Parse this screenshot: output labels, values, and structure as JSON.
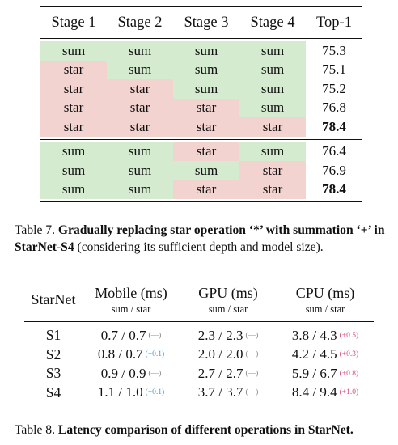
{
  "table7": {
    "headers": [
      "Stage 1",
      "Stage 2",
      "Stage 3",
      "Stage 4",
      "Top-1"
    ],
    "group1": [
      {
        "s1": "sum",
        "s2": "sum",
        "s3": "sum",
        "s4": "sum",
        "top1": "75.3"
      },
      {
        "s1": "star",
        "s2": "sum",
        "s3": "sum",
        "s4": "sum",
        "top1": "75.1"
      },
      {
        "s1": "star",
        "s2": "star",
        "s3": "sum",
        "s4": "sum",
        "top1": "75.2"
      },
      {
        "s1": "star",
        "s2": "star",
        "s3": "star",
        "s4": "sum",
        "top1": "76.8"
      },
      {
        "s1": "star",
        "s2": "star",
        "s3": "star",
        "s4": "star",
        "top1": "78.4"
      }
    ],
    "group2": [
      {
        "s1": "sum",
        "s2": "sum",
        "s3": "star",
        "s4": "sum",
        "top1": "76.4"
      },
      {
        "s1": "sum",
        "s2": "sum",
        "s3": "sum",
        "s4": "star",
        "top1": "76.9"
      },
      {
        "s1": "sum",
        "s2": "sum",
        "s3": "star",
        "s4": "star",
        "top1": "78.4"
      }
    ],
    "caption_label": "Table 7.",
    "caption_bold": "Gradually replacing star operation ‘*’ with summation ‘+’ in StarNet-S4",
    "caption_rest": "(considering its sufficient depth and model size)."
  },
  "table8": {
    "col0": "StarNet",
    "columns": [
      {
        "title": "Mobile (ms)",
        "sub": "sum / star"
      },
      {
        "title": "GPU (ms)",
        "sub": "sum / star"
      },
      {
        "title": "CPU (ms)",
        "sub": "sum / star"
      }
    ],
    "rows": [
      {
        "name": "S1",
        "mobile": "0.7 / 0.7",
        "mobile_d": "(—)",
        "gpu": "2.3 / 2.3",
        "gpu_d": "(—)",
        "cpu": "3.8 / 4.3",
        "cpu_d": "(+0.5)"
      },
      {
        "name": "S2",
        "mobile": "0.8 / 0.7",
        "mobile_d": "(−0.1)",
        "gpu": "2.0 / 2.0",
        "gpu_d": "(—)",
        "cpu": "4.2 / 4.5",
        "cpu_d": "(+0.3)"
      },
      {
        "name": "S3",
        "mobile": "0.9 / 0.9",
        "mobile_d": "(—)",
        "gpu": "2.7 / 2.7",
        "gpu_d": "(—)",
        "cpu": "5.9 / 6.7",
        "cpu_d": "(+0.8)"
      },
      {
        "name": "S4",
        "mobile": "1.1 / 1.0",
        "mobile_d": "(−0.1)",
        "gpu": "3.7 / 3.7",
        "gpu_d": "(—)",
        "cpu": "8.4 / 9.4",
        "cpu_d": "(+1.0)"
      }
    ],
    "caption_label": "Table 8.",
    "caption_bold": "Latency comparison of different operations in StarNet."
  },
  "colors": {
    "sum_bg": "#d4ebd0",
    "star_bg": "#f3d3d0",
    "delta_pos": "#d64b7d",
    "delta_neg": "#3a9ac9",
    "delta_neutral": "#888888"
  }
}
